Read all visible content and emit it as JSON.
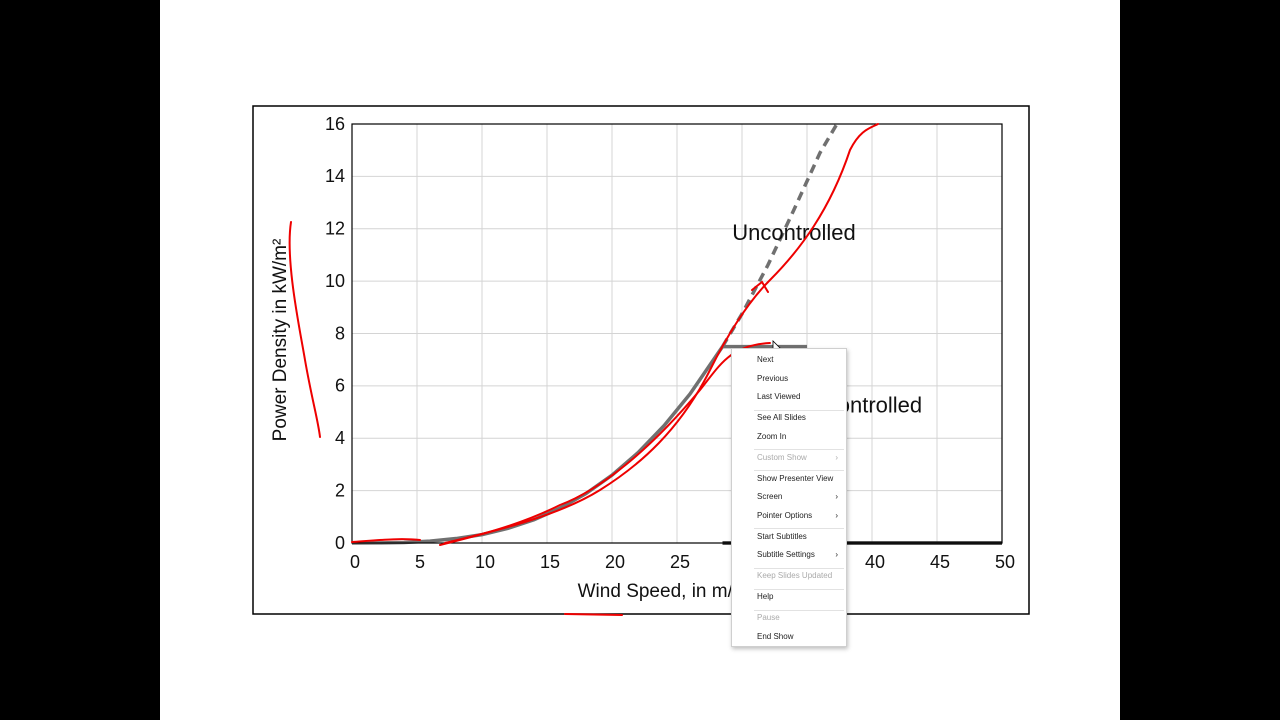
{
  "chart_data": {
    "type": "line",
    "x_label": "Wind Speed, in m/s",
    "y_label": "Power Density in kW/m²",
    "xlim": [
      0,
      50
    ],
    "xticks": [
      0,
      5,
      10,
      15,
      20,
      25,
      30,
      35,
      40,
      45,
      50
    ],
    "ylim": [
      0,
      16
    ],
    "yticks": [
      0,
      2,
      4,
      6,
      8,
      10,
      12,
      14,
      16
    ],
    "grid": true,
    "annotations": [
      {
        "text": "Uncontrolled",
        "x": 34,
        "y": 11.8
      },
      {
        "text": "Controlled",
        "x": 40,
        "y": 5.2
      }
    ],
    "series": [
      {
        "color": "#707070",
        "dash": false,
        "x": [
          0,
          2,
          4,
          6,
          8,
          10,
          12,
          14,
          16,
          18,
          20,
          22,
          24,
          26,
          28.5
        ],
        "values": [
          0,
          0.003,
          0.02,
          0.07,
          0.17,
          0.32,
          0.56,
          0.89,
          1.33,
          1.89,
          2.59,
          3.45,
          4.48,
          5.69,
          7.5
        ]
      },
      {
        "color": "#707070",
        "dash": true,
        "x": [
          28.5,
          30,
          32,
          34,
          36,
          37.3
        ],
        "values": [
          7.5,
          8.75,
          10.62,
          12.73,
          14.9,
          16
        ]
      },
      {
        "color": "#707070",
        "dash": false,
        "x": [
          28.5,
          35
        ],
        "values": [
          7.5,
          7.5
        ]
      },
      {
        "color": "#222222",
        "dash": false,
        "x": [
          28.5,
          50
        ],
        "values": [
          0,
          0
        ]
      }
    ]
  },
  "context_menu": {
    "groups": [
      [
        {
          "label": "Next",
          "enabled": true,
          "submenu": false
        },
        {
          "label": "Previous",
          "enabled": true,
          "submenu": false
        },
        {
          "label": "Last Viewed",
          "enabled": true,
          "submenu": false
        }
      ],
      [
        {
          "label": "See All Slides",
          "enabled": true,
          "submenu": false
        },
        {
          "label": "Zoom In",
          "enabled": true,
          "submenu": false
        }
      ],
      [
        {
          "label": "Custom Show",
          "enabled": false,
          "submenu": true
        }
      ],
      [
        {
          "label": "Show Presenter View",
          "enabled": true,
          "submenu": false
        },
        {
          "label": "Screen",
          "enabled": true,
          "submenu": true
        },
        {
          "label": "Pointer Options",
          "enabled": true,
          "submenu": true
        }
      ],
      [
        {
          "label": "Start Subtitles",
          "enabled": true,
          "submenu": false
        },
        {
          "label": "Subtitle Settings",
          "enabled": true,
          "submenu": true
        }
      ],
      [
        {
          "label": "Keep Slides Updated",
          "enabled": false,
          "submenu": false
        }
      ],
      [
        {
          "label": "Help",
          "enabled": true,
          "submenu": false
        }
      ],
      [
        {
          "label": "Pause",
          "enabled": false,
          "submenu": false
        },
        {
          "label": "End Show",
          "enabled": true,
          "submenu": false
        }
      ]
    ]
  }
}
